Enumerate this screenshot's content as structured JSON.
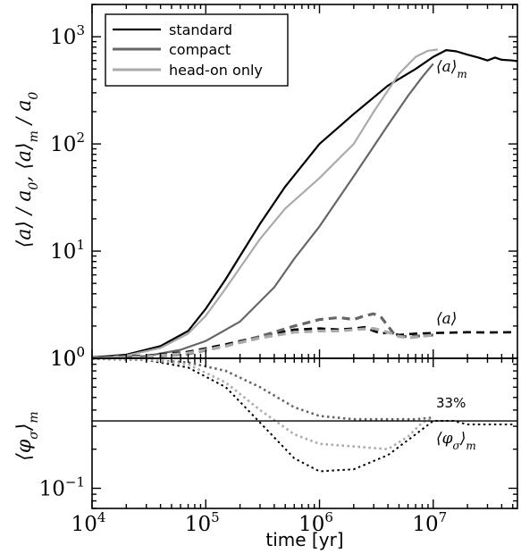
{
  "chart_data": {
    "type": "line",
    "xlabel": "time [yr]",
    "x_scale": "log",
    "xlim": [
      10000,
      55000000
    ],
    "x_ticks": [
      "10^4",
      "10^5",
      "10^6",
      "10^7"
    ],
    "panels": [
      {
        "id": "top",
        "ylabel": "⟨a⟩ / a₀, ⟨a⟩ₘ / a₀",
        "y_scale": "log",
        "ylim": [
          1.0,
          2000
        ],
        "y_ticks": [
          "10^0",
          "10^1",
          "10^2",
          "10^3"
        ],
        "legend": {
          "placement": "top-left",
          "entries": [
            "standard",
            "compact",
            "head-on only"
          ]
        },
        "annotations": [
          "⟨a⟩ₘ",
          "⟨a⟩"
        ],
        "series": [
          {
            "name": "standard",
            "quantity": "mass-weighted",
            "style": "solid",
            "color": "#000000",
            "points": [
              [
                10000.0,
                1.02
              ],
              [
                20000.0,
                1.08
              ],
              [
                40000.0,
                1.3
              ],
              [
                70000.0,
                1.8
              ],
              [
                100000.0,
                2.9
              ],
              [
                150000.0,
                5.5
              ],
              [
                200000.0,
                9
              ],
              [
                300000.0,
                18
              ],
              [
                500000.0,
                40
              ],
              [
                1000000.0,
                100
              ],
              [
                2000000.0,
                190
              ],
              [
                4000000.0,
                350
              ],
              [
                7000000.0,
                500
              ],
              [
                10000000.0,
                650
              ],
              [
                13000000.0,
                750
              ],
              [
                16000000.0,
                730
              ],
              [
                20000000.0,
                680
              ],
              [
                25000000.0,
                640
              ],
              [
                30000000.0,
                600
              ],
              [
                35000000.0,
                640
              ],
              [
                40000000.0,
                610
              ],
              [
                50000000.0,
                600
              ],
              [
                55000000.0,
                590
              ]
            ]
          },
          {
            "name": "compact",
            "quantity": "mass-weighted",
            "style": "solid",
            "color": "#666666",
            "points": [
              [
                10000.0,
                1.0
              ],
              [
                30000.0,
                1.05
              ],
              [
                60000.0,
                1.2
              ],
              [
                100000.0,
                1.45
              ],
              [
                200000.0,
                2.2
              ],
              [
                400000.0,
                4.6
              ],
              [
                600000.0,
                8.5
              ],
              [
                1000000.0,
                17
              ],
              [
                2000000.0,
                50
              ],
              [
                4000000.0,
                150
              ],
              [
                6000000.0,
                280
              ],
              [
                8000000.0,
                420
              ],
              [
                10000000.0,
                560
              ]
            ]
          },
          {
            "name": "head-on only",
            "quantity": "mass-weighted",
            "style": "solid",
            "color": "#aaaaaa",
            "points": [
              [
                10000.0,
                1.0
              ],
              [
                20000.0,
                1.06
              ],
              [
                40000.0,
                1.25
              ],
              [
                70000.0,
                1.7
              ],
              [
                100000.0,
                2.5
              ],
              [
                150000.0,
                4.5
              ],
              [
                200000.0,
                7
              ],
              [
                300000.0,
                13
              ],
              [
                500000.0,
                25
              ],
              [
                1000000.0,
                48
              ],
              [
                2000000.0,
                100
              ],
              [
                3000000.0,
                200
              ],
              [
                5000000.0,
                450
              ],
              [
                7000000.0,
                650
              ],
              [
                9000000.0,
                740
              ],
              [
                11000000.0,
                760
              ]
            ]
          },
          {
            "name": "standard",
            "quantity": "mean",
            "style": "dashed",
            "color": "#000000",
            "points": [
              [
                10000.0,
                1.02
              ],
              [
                30000.0,
                1.06
              ],
              [
                70000.0,
                1.15
              ],
              [
                150000.0,
                1.35
              ],
              [
                300000.0,
                1.6
              ],
              [
                600000.0,
                1.85
              ],
              [
                1000000.0,
                1.9
              ],
              [
                1500000.0,
                1.85
              ],
              [
                2000000.0,
                1.9
              ],
              [
                2500000.0,
                1.95
              ],
              [
                3000000.0,
                1.8
              ],
              [
                3500000.0,
                1.7
              ],
              [
                4000000.0,
                1.75
              ],
              [
                5000000.0,
                1.65
              ],
              [
                7000000.0,
                1.7
              ],
              [
                10000000.0,
                1.72
              ],
              [
                20000000.0,
                1.75
              ],
              [
                30000000.0,
                1.74
              ],
              [
                50000000.0,
                1.75
              ]
            ]
          },
          {
            "name": "compact",
            "quantity": "mean",
            "style": "dashed",
            "color": "#666666",
            "points": [
              [
                10000.0,
                1.0
              ],
              [
                30000.0,
                1.03
              ],
              [
                70000.0,
                1.1
              ],
              [
                150000.0,
                1.3
              ],
              [
                300000.0,
                1.6
              ],
              [
                600000.0,
                2.0
              ],
              [
                1000000.0,
                2.3
              ],
              [
                1500000.0,
                2.4
              ],
              [
                2000000.0,
                2.3
              ],
              [
                2500000.0,
                2.5
              ],
              [
                3000000.0,
                2.6
              ],
              [
                3500000.0,
                2.4
              ],
              [
                4000000.0,
                2.0
              ],
              [
                4500000.0,
                1.7
              ],
              [
                5000000.0,
                1.6
              ],
              [
                6000000.0,
                1.6
              ],
              [
                8000000.0,
                1.62
              ],
              [
                10000000.0,
                1.65
              ]
            ]
          },
          {
            "name": "head-on only",
            "quantity": "mean",
            "style": "dashed",
            "color": "#aaaaaa",
            "points": [
              [
                10000.0,
                1.0
              ],
              [
                30000.0,
                1.04
              ],
              [
                70000.0,
                1.12
              ],
              [
                150000.0,
                1.3
              ],
              [
                300000.0,
                1.55
              ],
              [
                600000.0,
                1.75
              ],
              [
                1000000.0,
                1.8
              ],
              [
                1500000.0,
                1.8
              ],
              [
                2000000.0,
                1.85
              ],
              [
                3000000.0,
                1.9
              ],
              [
                4000000.0,
                1.75
              ],
              [
                5000000.0,
                1.6
              ],
              [
                6000000.0,
                1.55
              ],
              [
                8000000.0,
                1.6
              ],
              [
                10000000.0,
                1.65
              ]
            ]
          }
        ]
      },
      {
        "id": "bottom",
        "ylabel": "⟨φσ⟩ₘ",
        "y_scale": "log",
        "ylim": [
          0.07,
          1.0
        ],
        "y_ticks": [
          "10^0",
          "10^-1"
        ],
        "reference_lines": [
          {
            "y": 0.33,
            "label": "33%"
          }
        ],
        "annotations": [
          "⟨φσ⟩ₘ"
        ],
        "series": [
          {
            "name": "standard",
            "style": "dotted",
            "color": "#000000",
            "points": [
              [
                10000.0,
                1.0
              ],
              [
                30000.0,
                0.97
              ],
              [
                70000.0,
                0.85
              ],
              [
                150000.0,
                0.6
              ],
              [
                300000.0,
                0.32
              ],
              [
                600000.0,
                0.17
              ],
              [
                1000000.0,
                0.135
              ],
              [
                2000000.0,
                0.14
              ],
              [
                4000000.0,
                0.18
              ],
              [
                7000000.0,
                0.26
              ],
              [
                10000000.0,
                0.33
              ],
              [
                15000000.0,
                0.33
              ],
              [
                20000000.0,
                0.31
              ],
              [
                30000000.0,
                0.31
              ],
              [
                50000000.0,
                0.31
              ]
            ]
          },
          {
            "name": "compact",
            "style": "dotted",
            "color": "#666666",
            "points": [
              [
                10000.0,
                0.99
              ],
              [
                30000.0,
                0.97
              ],
              [
                70000.0,
                0.93
              ],
              [
                150000.0,
                0.8
              ],
              [
                300000.0,
                0.6
              ],
              [
                600000.0,
                0.42
              ],
              [
                1000000.0,
                0.36
              ],
              [
                2000000.0,
                0.34
              ],
              [
                4000000.0,
                0.34
              ],
              [
                7000000.0,
                0.34
              ],
              [
                10000000.0,
                0.35
              ]
            ]
          },
          {
            "name": "head-on only",
            "style": "dotted",
            "color": "#aaaaaa",
            "points": [
              [
                10000.0,
                1.0
              ],
              [
                30000.0,
                0.98
              ],
              [
                70000.0,
                0.9
              ],
              [
                150000.0,
                0.65
              ],
              [
                300000.0,
                0.4
              ],
              [
                600000.0,
                0.26
              ],
              [
                1000000.0,
                0.22
              ],
              [
                2000000.0,
                0.21
              ],
              [
                4000000.0,
                0.2
              ],
              [
                6000000.0,
                0.25
              ],
              [
                8000000.0,
                0.32
              ],
              [
                10000000.0,
                0.35
              ]
            ]
          }
        ]
      }
    ]
  },
  "labels": {
    "xlabel": "time [yr]",
    "legend_standard": "standard",
    "legend_compact": "compact",
    "legend_headon": "head-on only",
    "annot_am": "⟨a⟩",
    "annot_am_sub": "m",
    "annot_a": "⟨a⟩",
    "annot_33": "33%",
    "annot_phi": "⟨φ",
    "annot_phi_sub1": "σ",
    "annot_phi_close": "⟩",
    "annot_phi_sub2": "m"
  }
}
